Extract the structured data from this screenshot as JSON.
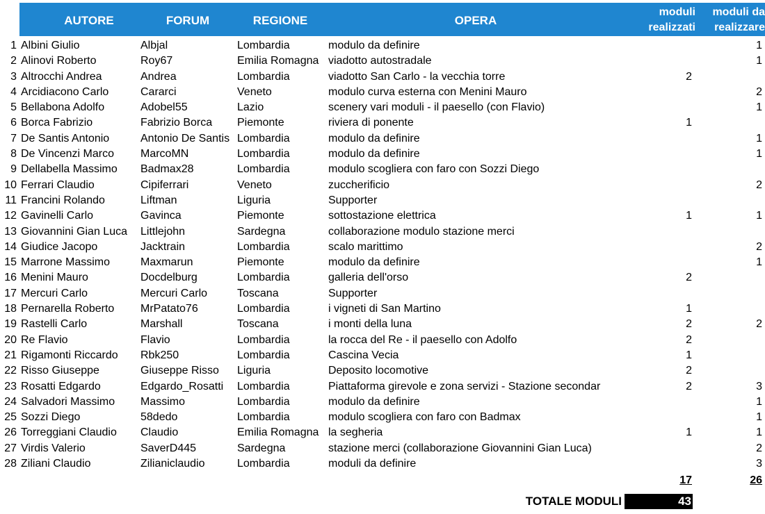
{
  "headers": {
    "autore": "AUTORE",
    "forum": "FORUM",
    "regione": "REGIONE",
    "opera": "OPERA",
    "moduli_realizzati_line1": "moduli",
    "moduli_realizzati_line2": "realizzati",
    "moduli_da_realizzare_line1": "moduli da",
    "moduli_da_realizzare_line2": "realizzare"
  },
  "rows": [
    {
      "n": "1",
      "autore": "Albini Giulio",
      "forum": "Albjal",
      "regione": "Lombardia",
      "opera": "modulo da definire",
      "realizzati": "",
      "da_realizzare": "1"
    },
    {
      "n": "2",
      "autore": "Alinovi Roberto",
      "forum": "Roy67",
      "regione": "Emilia Romagna",
      "opera": "viadotto autostradale",
      "realizzati": "",
      "da_realizzare": "1"
    },
    {
      "n": "3",
      "autore": "Altrocchi Andrea",
      "forum": "Andrea",
      "regione": "Lombardia",
      "opera": "viadotto San Carlo - la vecchia torre",
      "realizzati": "2",
      "da_realizzare": ""
    },
    {
      "n": "4",
      "autore": "Arcidiacono Carlo",
      "forum": "Cararci",
      "regione": "Veneto",
      "opera": "modulo curva esterna con Menini Mauro",
      "realizzati": "",
      "da_realizzare": "2"
    },
    {
      "n": "5",
      "autore": "Bellabona Adolfo",
      "forum": "Adobel55",
      "regione": "Lazio",
      "opera": "scenery vari moduli - il paesello (con Flavio)",
      "realizzati": "",
      "da_realizzare": "1"
    },
    {
      "n": "6",
      "autore": "Borca Fabrizio",
      "forum": "Fabrizio Borca",
      "regione": "Piemonte",
      "opera": "riviera di ponente",
      "realizzati": "1",
      "da_realizzare": ""
    },
    {
      "n": "7",
      "autore": "De Santis Antonio",
      "forum": "Antonio De Santis",
      "regione": "Lombardia",
      "opera": "modulo da definire",
      "realizzati": "",
      "da_realizzare": "1"
    },
    {
      "n": "8",
      "autore": "De Vincenzi Marco",
      "forum": "MarcoMN",
      "regione": "Lombardia",
      "opera": "modulo da definire",
      "realizzati": "",
      "da_realizzare": "1"
    },
    {
      "n": "9",
      "autore": "Dellabella Massimo",
      "forum": "Badmax28",
      "regione": "Lombardia",
      "opera": "modulo scogliera con faro con Sozzi Diego",
      "realizzati": "",
      "da_realizzare": ""
    },
    {
      "n": "10",
      "autore": "Ferrari Claudio",
      "forum": "Cipiferrari",
      "regione": "Veneto",
      "opera": "zuccherificio",
      "realizzati": "",
      "da_realizzare": "2"
    },
    {
      "n": "11",
      "autore": "Francini Rolando",
      "forum": "Liftman",
      "regione": "Liguria",
      "opera": "Supporter",
      "realizzati": "",
      "da_realizzare": ""
    },
    {
      "n": "12",
      "autore": "Gavinelli Carlo",
      "forum": "Gavinca",
      "regione": "Piemonte",
      "opera": "sottostazione elettrica",
      "realizzati": "1",
      "da_realizzare": "1"
    },
    {
      "n": "13",
      "autore": "Giovannini Gian Luca",
      "forum": "Littlejohn",
      "regione": "Sardegna",
      "opera": "collaborazione modulo stazione merci",
      "realizzati": "",
      "da_realizzare": ""
    },
    {
      "n": "14",
      "autore": "Giudice Jacopo",
      "forum": "Jacktrain",
      "regione": "Lombardia",
      "opera": "scalo marittimo",
      "realizzati": "",
      "da_realizzare": "2"
    },
    {
      "n": "15",
      "autore": "Marrone Massimo",
      "forum": "Maxmarun",
      "regione": "Piemonte",
      "opera": "modulo da definire",
      "realizzati": "",
      "da_realizzare": "1"
    },
    {
      "n": "16",
      "autore": "Menini Mauro",
      "forum": "Docdelburg",
      "regione": "Lombardia",
      "opera": "galleria dell'orso",
      "realizzati": "2",
      "da_realizzare": ""
    },
    {
      "n": "17",
      "autore": "Mercuri Carlo",
      "forum": "Mercuri Carlo",
      "regione": "Toscana",
      "opera": "Supporter",
      "realizzati": "",
      "da_realizzare": ""
    },
    {
      "n": "18",
      "autore": "Pernarella Roberto",
      "forum": "MrPatato76",
      "regione": "Lombardia",
      "opera": "i vigneti di San Martino",
      "realizzati": "1",
      "da_realizzare": ""
    },
    {
      "n": "19",
      "autore": "Rastelli Carlo",
      "forum": "Marshall",
      "regione": "Toscana",
      "opera": "i monti della luna",
      "realizzati": "2",
      "da_realizzare": "2"
    },
    {
      "n": "20",
      "autore": "Re Flavio",
      "forum": "Flavio",
      "regione": "Lombardia",
      "opera": "la rocca del Re - il paesello con Adolfo",
      "realizzati": "2",
      "da_realizzare": ""
    },
    {
      "n": "21",
      "autore": "Rigamonti Riccardo",
      "forum": "Rbk250",
      "regione": "Lombardia",
      "opera": "Cascina Vecia",
      "realizzati": "1",
      "da_realizzare": ""
    },
    {
      "n": "22",
      "autore": "Risso Giuseppe",
      "forum": "Giuseppe Risso",
      "regione": "Liguria",
      "opera": "Deposito locomotive",
      "realizzati": "2",
      "da_realizzare": ""
    },
    {
      "n": "23",
      "autore": "Rosatti Edgardo",
      "forum": "Edgardo_Rosatti",
      "regione": "Lombardia",
      "opera": "Piattaforma girevole e zona servizi  - Stazione secondar",
      "realizzati": "2",
      "da_realizzare": "3"
    },
    {
      "n": "24",
      "autore": "Salvadori Massimo",
      "forum": "Massimo",
      "regione": "Lombardia",
      "opera": "modulo da definire",
      "realizzati": "",
      "da_realizzare": "1"
    },
    {
      "n": "25",
      "autore": "Sozzi Diego",
      "forum": "58dedo",
      "regione": "Lombardia",
      "opera": "modulo scogliera con faro con Badmax",
      "realizzati": "",
      "da_realizzare": "1"
    },
    {
      "n": "26",
      "autore": "Torreggiani Claudio",
      "forum": "Claudio",
      "regione": "Emilia Romagna",
      "opera": "la segheria",
      "realizzati": "1",
      "da_realizzare": "1"
    },
    {
      "n": "27",
      "autore": "Virdis Valerio",
      "forum": "SaverD445",
      "regione": "Sardegna",
      "opera": "stazione merci (collaborazione Giovannini Gian Luca)",
      "realizzati": "",
      "da_realizzare": "2"
    },
    {
      "n": "28",
      "autore": "Ziliani Claudio",
      "forum": "Zilianiclaudio",
      "regione": "Lombardia",
      "opera": "moduli da definire",
      "realizzati": "",
      "da_realizzare": "3"
    }
  ],
  "totals": {
    "realizzati": "17",
    "da_realizzare": "26",
    "grand_label": "TOTALE MODULI",
    "grand_value": "43"
  },
  "colors": {
    "header_bg": "#1f86d0",
    "header_text": "#ffffff",
    "total_box_bg": "#000000"
  }
}
